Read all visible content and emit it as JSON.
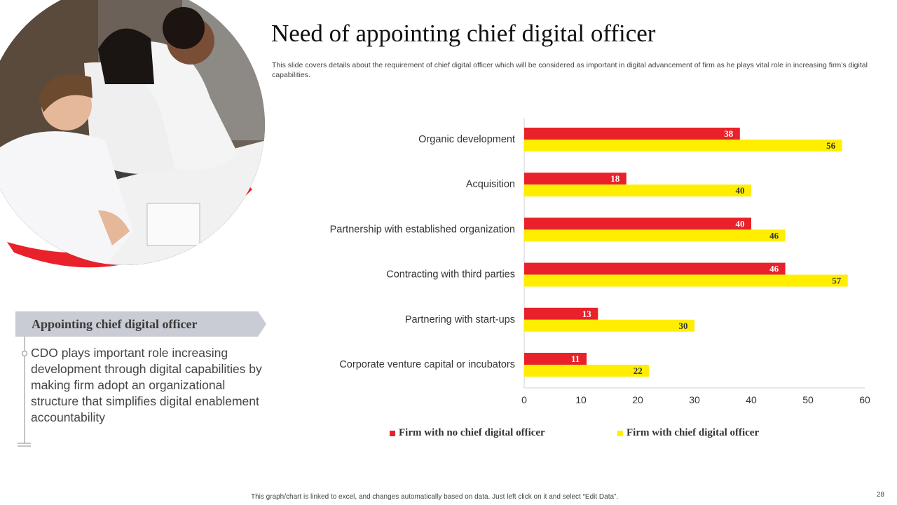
{
  "slide": {
    "title": "Need of appointing chief digital officer",
    "subtitle": "This slide covers details about the requirement of chief digital officer which will be considered as important in digital advancement of firm as he plays vital role in increasing firm’s digital capabilities.",
    "callout": {
      "title": "Appointing  chief digital officer",
      "body": "CDO plays important role increasing development through digital capabilities by making firm adopt an organizational structure that simplifies digital enablement accountability"
    },
    "footnote": "This graph/chart is linked to excel, and changes automatically based on data. Just left click on it and select “Edit Data”.",
    "page_number": "28",
    "photo_icon": "business-team-photo"
  },
  "colors": {
    "accent_red": "#e8212a",
    "accent_yellow": "#ffee00",
    "callout_gray": "#c9ccd4"
  },
  "chart_data": {
    "type": "bar",
    "orientation": "horizontal",
    "categories": [
      "Organic development",
      "Acquisition",
      "Partnership with established organization",
      "Contracting with third parties",
      "Partnering with start-ups",
      "Corporate venture capital or incubators"
    ],
    "series": [
      {
        "name": "Firm with no chief digital officer",
        "color": "#e8212a",
        "values": [
          38,
          18,
          40,
          46,
          13,
          11
        ]
      },
      {
        "name": "Firm with chief digital officer",
        "color": "#ffee00",
        "values": [
          56,
          40,
          46,
          57,
          30,
          22
        ]
      }
    ],
    "xlim": [
      0,
      60
    ],
    "xticks": [
      "0",
      "10",
      "20",
      "30",
      "40",
      "50",
      "60"
    ],
    "grid": false,
    "legend_position": "bottom"
  }
}
